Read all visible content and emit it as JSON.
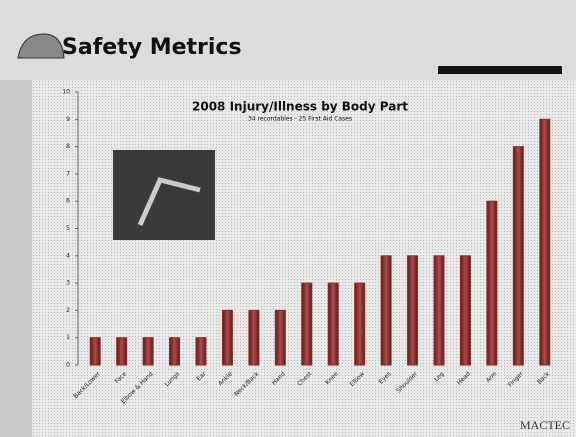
{
  "header": {
    "title": "Safety Metrics",
    "logo": "MACTEC"
  },
  "chart_data": {
    "type": "bar",
    "title": "2008 Injury/Illness by Body Part",
    "subtitle": "34 recordables - 25 First Aid Cases",
    "categories": [
      "Back/Lower",
      "Face",
      "Elbow & Hand",
      "Lungs",
      "Ear",
      "Ankle",
      "Neck/Back",
      "Hand",
      "Chest",
      "Knee",
      "Elbow",
      "Eyes",
      "Shoulder",
      "Leg",
      "Head",
      "Arm",
      "Finger",
      "Back"
    ],
    "values": [
      1,
      1,
      1,
      1,
      1,
      2,
      2,
      2,
      3,
      3,
      3,
      4,
      4,
      4,
      4,
      6,
      8,
      9
    ],
    "color": "#8b2b2b",
    "ylim": [
      0,
      10
    ],
    "yticks": [
      0,
      1,
      2,
      3,
      4,
      5,
      6,
      7,
      8,
      9,
      10
    ]
  }
}
